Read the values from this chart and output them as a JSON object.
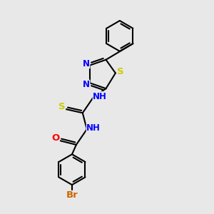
{
  "bg_color": "#e8e8e8",
  "bond_color": "#000000",
  "bond_width": 1.5,
  "atom_colors": {
    "N": "#0000ff",
    "S": "#cccc00",
    "O": "#ff0000",
    "Br": "#cc6600",
    "C": "#000000"
  },
  "font_size": 8.5,
  "fig_size": [
    3.0,
    3.0
  ],
  "dpi": 100,
  "xlim": [
    0,
    10
  ],
  "ylim": [
    0,
    10
  ]
}
